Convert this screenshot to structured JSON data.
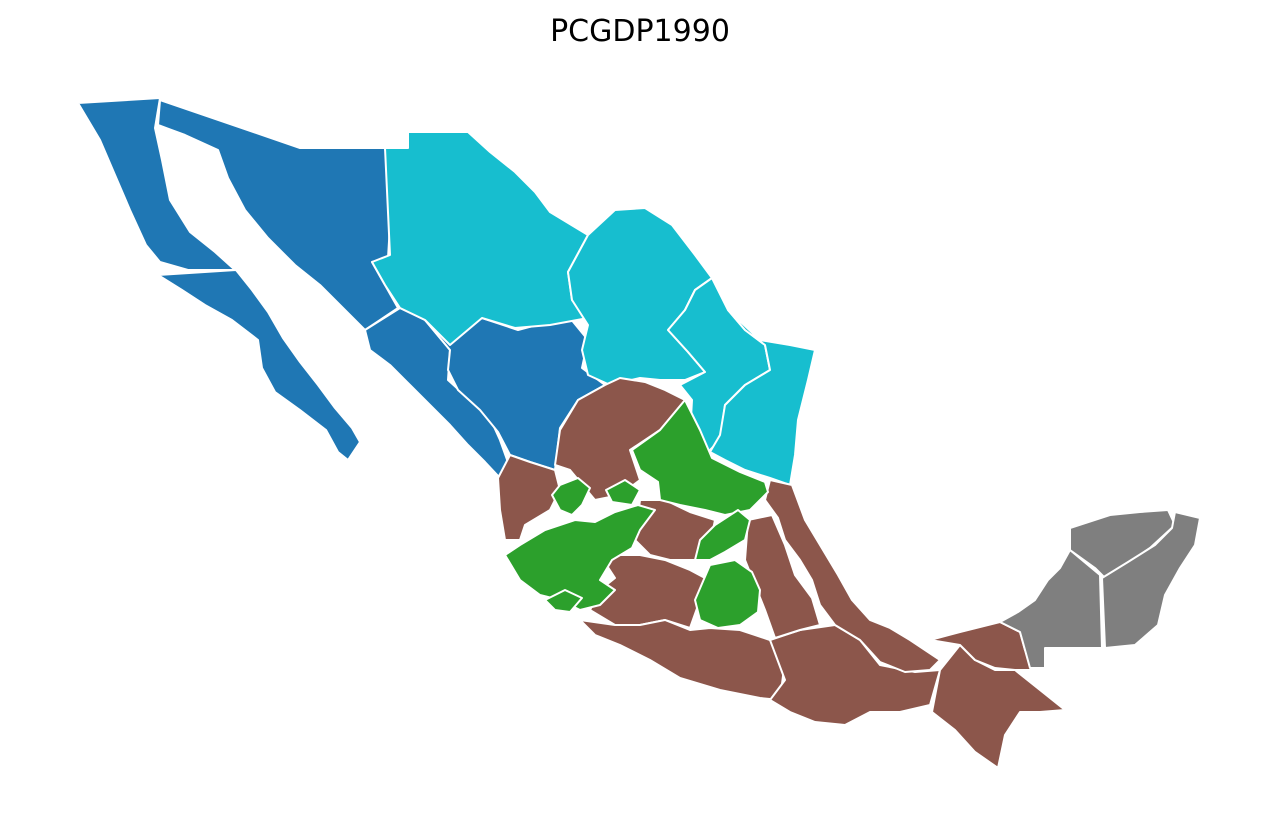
{
  "title": "PCGDP1990",
  "colors": {
    "blue": "#1f77b4",
    "cyan": "#17becf",
    "green": "#2ca02c",
    "brown": "#8c564b",
    "gray": "#7f7f7f",
    "border": "#ffffff"
  }
}
